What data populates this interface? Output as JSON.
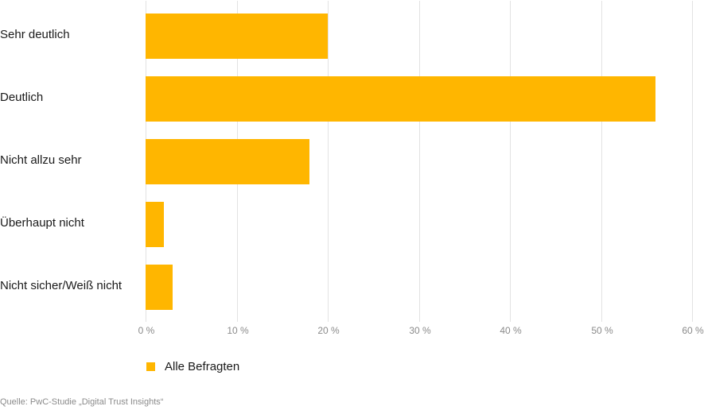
{
  "chart_data": {
    "type": "bar",
    "orientation": "horizontal",
    "title": "",
    "xlabel": "",
    "ylabel": "",
    "categories": [
      "Sehr deutlich",
      "Deutlich",
      "Nicht allzu sehr",
      "Überhaupt nicht",
      "Nicht sicher/Weiß nicht"
    ],
    "series": [
      {
        "name": "Alle Befragten",
        "color": "#ffb600",
        "values": [
          20,
          56,
          18,
          2,
          3
        ]
      }
    ],
    "xlim": [
      0,
      60
    ],
    "ticks": [
      0,
      10,
      20,
      30,
      40,
      50,
      60
    ],
    "tick_labels": [
      "0 %",
      "10 %",
      "20 %",
      "30 %",
      "40 %",
      "50 %",
      "60 %"
    ],
    "grid": true,
    "legend_position": "bottom",
    "source": "Quelle: PwC-Studie „Digital Trust Insights“"
  },
  "legend": {
    "label": "Alle Befragten"
  },
  "source": "Quelle: PwC-Studie „Digital Trust Insights“",
  "colors": {
    "bar": "#ffb600",
    "grid": "#e2e2e2"
  }
}
